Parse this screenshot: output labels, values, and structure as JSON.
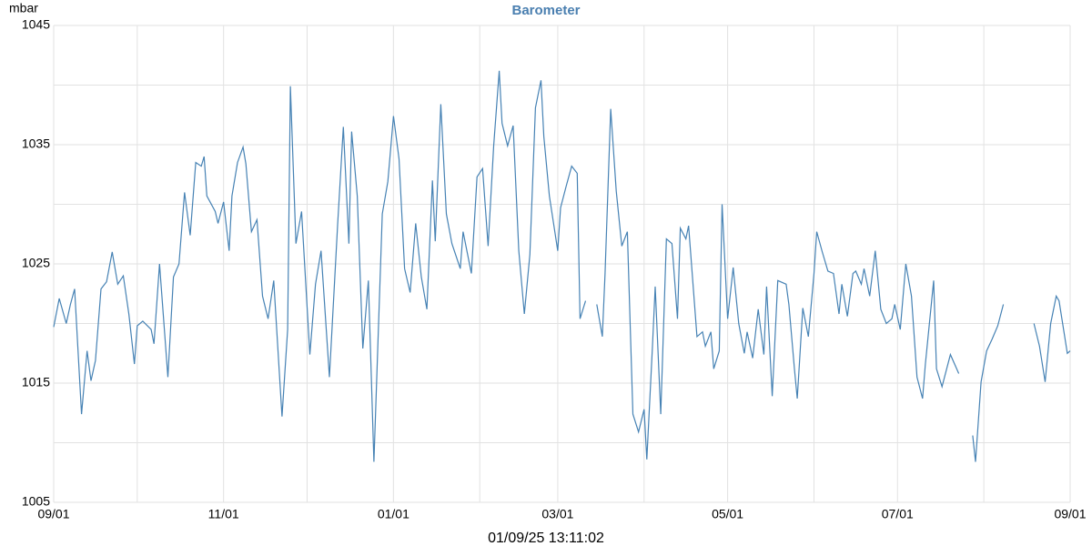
{
  "chart_data": {
    "type": "line",
    "title": "Barometer",
    "y_label": "mbar",
    "footer": "01/09/25 13:11:02",
    "color": "#4682b4",
    "xlim": [
      0,
      365
    ],
    "xticks": [
      {
        "value": 0,
        "label": "09/01"
      },
      {
        "value": 61,
        "label": "11/01"
      },
      {
        "value": 122,
        "label": "01/01"
      },
      {
        "value": 181,
        "label": "03/01"
      },
      {
        "value": 242,
        "label": "05/01"
      },
      {
        "value": 303,
        "label": "07/01"
      },
      {
        "value": 365,
        "label": "09/01"
      }
    ],
    "xminor": [
      30,
      91,
      153,
      212,
      273,
      334
    ],
    "ylim": [
      1005,
      1045
    ],
    "yticks": [
      1005,
      1015,
      1025,
      1035,
      1045
    ],
    "yminor": [
      1010,
      1020,
      1030,
      1040
    ],
    "grid": true,
    "x": [
      0,
      2,
      4.5,
      6,
      7.5,
      10,
      12,
      13.4,
      15,
      17,
      19,
      21,
      23,
      25,
      27,
      29,
      30,
      32,
      35,
      36,
      38,
      41,
      43,
      45,
      47,
      49,
      51,
      53,
      54,
      55,
      58,
      59,
      61,
      63,
      64,
      66,
      68,
      69,
      71,
      73,
      75,
      77,
      79,
      82,
      84,
      85,
      87,
      89,
      92,
      94,
      96,
      99,
      102,
      104,
      106,
      107,
      109,
      111,
      113,
      115,
      118,
      120,
      122,
      124,
      126,
      128,
      130,
      132,
      134,
      136,
      137,
      139,
      141,
      143,
      146,
      147,
      150,
      152,
      154,
      156,
      158,
      160,
      161,
      163,
      165,
      167,
      169,
      171,
      173,
      175,
      176,
      178,
      181,
      182,
      184,
      186,
      188,
      189,
      191,
      193,
      195,
      197,
      198,
      200,
      202,
      204,
      206,
      208,
      210,
      212,
      213,
      215,
      216,
      218,
      220,
      222,
      224,
      225,
      227,
      228,
      231,
      233,
      234,
      236,
      237,
      239,
      240,
      242,
      244,
      246,
      248,
      249,
      251,
      253,
      255,
      256,
      258,
      260,
      263,
      264,
      266,
      267,
      269,
      271,
      273,
      274,
      276,
      278,
      280,
      282,
      283,
      285,
      287,
      288,
      290,
      291,
      293,
      295,
      297,
      299,
      301,
      302,
      304,
      306,
      308,
      310,
      312,
      313,
      316,
      317,
      319,
      322,
      325,
      328,
      330,
      331,
      333,
      335,
      337,
      339,
      341,
      346,
      352,
      354,
      356,
      358,
      360,
      361,
      364,
      365
    ],
    "values": [
      1019.7,
      1022.1,
      1020,
      1021.6,
      1022.9,
      1012.4,
      1017.7,
      1015.2,
      1016.9,
      1022.9,
      1023.5,
      1026,
      1023.3,
      1024,
      1020.8,
      1016.6,
      1019.8,
      1020.2,
      1019.5,
      1018.3,
      1025,
      1015.5,
      1023.9,
      1025,
      1031,
      1027.4,
      1033.5,
      1033.2,
      1034,
      1030.7,
      1029.4,
      1028.4,
      1030.2,
      1026.1,
      1030.7,
      1033.5,
      1034.8,
      1033.4,
      1027.7,
      1028.7,
      1022.3,
      1020.4,
      1023.6,
      1012.2,
      1019.5,
      1039.9,
      1026.7,
      1029.4,
      1017.4,
      1023.3,
      1026.1,
      1015.5,
      1028.4,
      1036.5,
      1026.7,
      1036.1,
      1030.7,
      1017.9,
      1023.6,
      1008.4,
      1029.2,
      1031.9,
      1037.4,
      1033.8,
      1024.6,
      1022.6,
      1028.4,
      1023.9,
      1021.2,
      1032,
      1026.9,
      1038.4,
      1029.2,
      1026.7,
      1024.6,
      1027.7,
      1024.2,
      1032.3,
      1033,
      1026.5,
      1034.9,
      1041.2,
      1036.8,
      1034.9,
      1036.6,
      1026.1,
      1020.8,
      1025.8,
      1038.1,
      1040.4,
      1035.7,
      1030.7,
      1026.1,
      1029.7,
      1031.5,
      1033.2,
      1032.6,
      1020.4,
      1021.9,
      null,
      1021.6,
      1018.9,
      1024.2,
      1038,
      1031.1,
      1026.5,
      1027.7,
      1012.4,
      1010.9,
      1012.8,
      1008.6,
      1018.1,
      1023.1,
      1012.4,
      1027.1,
      1026.7,
      1020.4,
      1028,
      1027.1,
      1028.2,
      1018.9,
      1019.3,
      1018.1,
      1019.3,
      1016.2,
      1017.7,
      1030,
      1020.4,
      1024.7,
      1020,
      1017.5,
      1019.3,
      1017.1,
      1021.2,
      1017.4,
      1023.1,
      1013.9,
      1023.6,
      1023.3,
      1021.6,
      1016.2,
      1013.7,
      1021.3,
      1018.9,
      1024.2,
      1027.7,
      1026,
      1024.4,
      1024.2,
      1020.8,
      1023.3,
      1020.6,
      1024.2,
      1024.4,
      1023.3,
      1024.6,
      1022.3,
      1026.1,
      1021.2,
      1020,
      1020.4,
      1021.6,
      1019.5,
      1025,
      1022.3,
      1015.5,
      1013.7,
      1016.6,
      1023.6,
      1016.2,
      1014.7,
      1017.4,
      1015.8,
      null,
      1010.6,
      1008.4,
      1015.1,
      1017.7,
      1018.7,
      1019.8,
      1021.6,
      null,
      1020,
      1018.1,
      1015.1,
      1020,
      1022.3,
      1021.9,
      1017.5,
      1017.7
    ]
  }
}
